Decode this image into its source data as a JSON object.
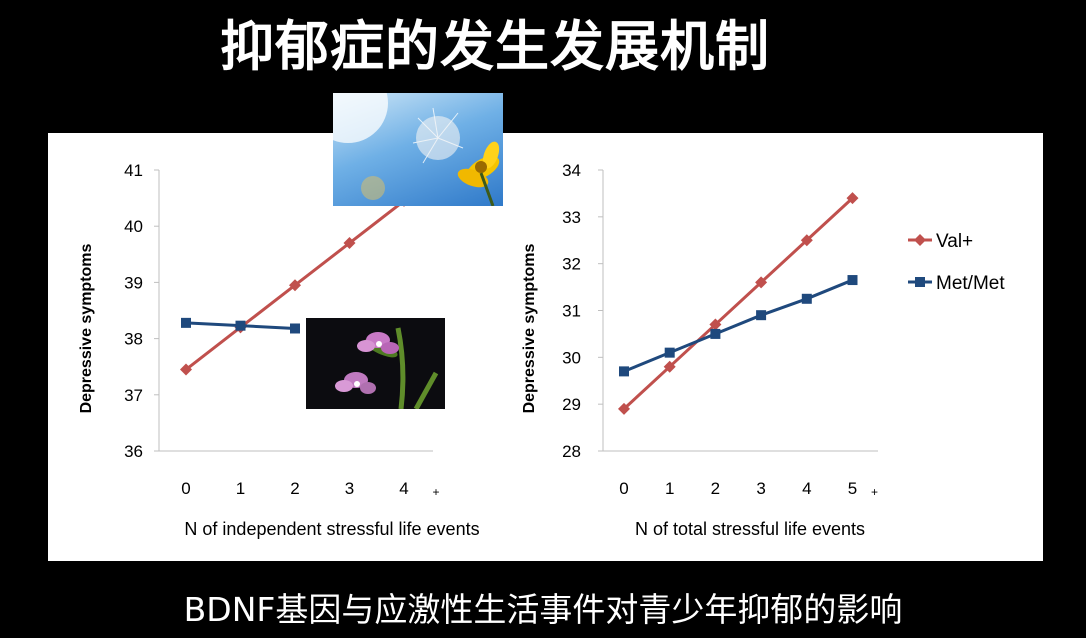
{
  "title": "抑郁症的发生发展机制",
  "caption": "BDNF基因与应激性生活事件对青少年抑郁的影响",
  "colors": {
    "val": "#C0504D",
    "met": "#1F497D"
  },
  "legend": {
    "val": "Val+",
    "met": "Met/Met"
  },
  "photos": {
    "sky": "dandelion-sky-photo",
    "orchid": "orchid-photo"
  },
  "chart_data": [
    {
      "type": "line",
      "title": "",
      "xlabel": "N of independent stressful life events",
      "ylabel": "Depressive symptoms",
      "categories": [
        "0",
        "1",
        "2",
        "3",
        "4"
      ],
      "x_extra_label": "+",
      "ylim": [
        36,
        41
      ],
      "yticks": [
        36,
        37,
        38,
        39,
        40,
        41
      ],
      "series": [
        {
          "name": "Val+",
          "marker": "diamond",
          "values": [
            37.45,
            38.2,
            38.95,
            39.7,
            40.45
          ]
        },
        {
          "name": "Met/Met",
          "marker": "square",
          "values": [
            38.28,
            38.23,
            38.18,
            null,
            null
          ]
        }
      ]
    },
    {
      "type": "line",
      "title": "",
      "xlabel": "N of total stressful life events",
      "ylabel": "Depressive symptoms",
      "categories": [
        "0",
        "1",
        "2",
        "3",
        "4",
        "5"
      ],
      "x_extra_label": "+",
      "ylim": [
        28,
        34
      ],
      "yticks": [
        28,
        29,
        30,
        31,
        32,
        33,
        34
      ],
      "legend_position": "right",
      "series": [
        {
          "name": "Val+",
          "marker": "diamond",
          "values": [
            28.9,
            29.8,
            30.7,
            31.6,
            32.5,
            33.4
          ]
        },
        {
          "name": "Met/Met",
          "marker": "square",
          "values": [
            29.7,
            30.1,
            30.5,
            30.9,
            31.25,
            31.65
          ]
        }
      ]
    }
  ]
}
